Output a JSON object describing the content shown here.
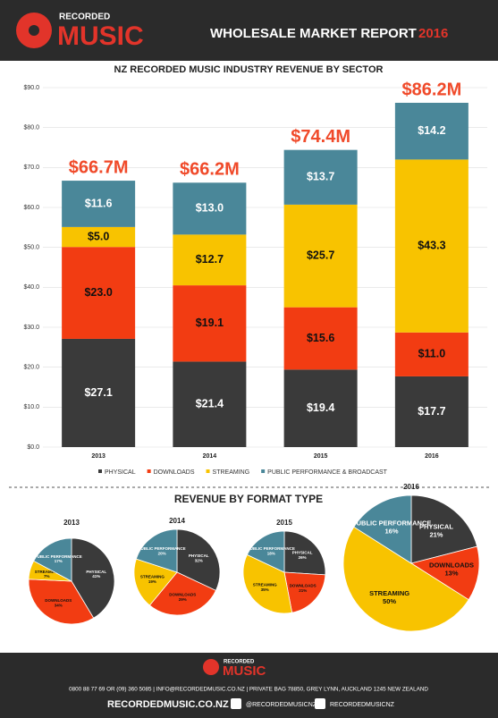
{
  "header": {
    "logo_top": "RECORDED",
    "logo_main": "MUSIC",
    "title": "WHOLESALE MARKET REPORT",
    "year": "2016"
  },
  "chart_data": [
    {
      "type": "stacked_bar",
      "title": "NZ RECORDED MUSIC INDUSTRY REVENUE BY SECTOR",
      "categories": [
        "2013",
        "2014",
        "2015",
        "2016"
      ],
      "series": [
        {
          "name": "PHYSICAL",
          "color": "#3a3a3a",
          "values": [
            27.1,
            21.4,
            19.4,
            17.7
          ],
          "value_labels": [
            "$27.1",
            "$21.4",
            "$19.4",
            "$17.7"
          ]
        },
        {
          "name": "DOWNLOADS",
          "color": "#f23c12",
          "values": [
            23.0,
            19.1,
            15.6,
            11.0
          ],
          "value_labels": [
            "$23.0",
            "$19.1",
            "$15.6",
            "$11.0"
          ]
        },
        {
          "name": "STREAMING",
          "color": "#f8c300",
          "values": [
            5.0,
            12.7,
            25.7,
            43.3
          ],
          "value_labels": [
            "$5.0",
            "$12.7",
            "$25.7",
            "$43.3"
          ]
        },
        {
          "name": "PUBLIC PERFORMANCE & BROADCAST",
          "color": "#4a8799",
          "values": [
            11.6,
            13.0,
            13.7,
            14.2
          ],
          "value_labels": [
            "$11.6",
            "$13.0",
            "$13.7",
            "$14.2"
          ]
        }
      ],
      "totals": {
        "values": [
          66.7,
          66.2,
          74.4,
          86.2
        ],
        "value_labels": [
          "$66.7M",
          "$66.2M",
          "$74.4M",
          "$86.2M"
        ]
      },
      "ylim": [
        0,
        90
      ],
      "yticks": [
        {
          "value": 0,
          "label": "$0.0"
        },
        {
          "value": 10,
          "label": "$10.0"
        },
        {
          "value": 20,
          "label": "$20.0"
        },
        {
          "value": 30,
          "label": "$30.0"
        },
        {
          "value": 40,
          "label": "$40.0"
        },
        {
          "value": 50,
          "label": "$50.0"
        },
        {
          "value": 60,
          "label": "$60.0"
        },
        {
          "value": 70,
          "label": "$70.0"
        },
        {
          "value": 80,
          "label": "$80.0"
        },
        {
          "value": 90,
          "label": "$90.0"
        }
      ],
      "legend": "bottom"
    },
    {
      "type": "pie",
      "title": "2013",
      "categories": [
        "PHYSICAL",
        "DOWNLOADS",
        "STREAMING",
        "PUBLIC PERFORMANCE"
      ],
      "colors": [
        "#3a3a3a",
        "#f23c12",
        "#f8c300",
        "#4a8799"
      ],
      "values": [
        41,
        34,
        7,
        17
      ],
      "value_labels": [
        "41%",
        "34%",
        "7%",
        "17%"
      ]
    },
    {
      "type": "pie",
      "title": "2014",
      "categories": [
        "PHYSICAL",
        "DOWNLOADS",
        "STREAMING",
        "PUBLIC PERFORMANCE"
      ],
      "colors": [
        "#3a3a3a",
        "#f23c12",
        "#f8c300",
        "#4a8799"
      ],
      "values": [
        32,
        29,
        19,
        20
      ],
      "value_labels": [
        "32%",
        "29%",
        "19%",
        "20%"
      ]
    },
    {
      "type": "pie",
      "title": "2015",
      "categories": [
        "PHYSICAL",
        "DOWNLOADS",
        "STREAMING",
        "PUBLIC PERFORMANCE"
      ],
      "colors": [
        "#3a3a3a",
        "#f23c12",
        "#f8c300",
        "#4a8799"
      ],
      "values": [
        26,
        21,
        35,
        18
      ],
      "value_labels": [
        "26%",
        "21%",
        "35%",
        "18%"
      ]
    },
    {
      "type": "pie",
      "title": "2016",
      "categories": [
        "PHYSICAL",
        "DOWNLOADS",
        "STREAMING",
        "PUBLIC PERFORMANCE"
      ],
      "colors": [
        "#3a3a3a",
        "#f23c12",
        "#f8c300",
        "#4a8799"
      ],
      "values": [
        21,
        13,
        50,
        16
      ],
      "value_labels": [
        "21%",
        "13%",
        "50%",
        "16%"
      ]
    }
  ],
  "section_title": "REVENUE BY FORMAT TYPE",
  "footer": {
    "logo_top": "RECORDED",
    "logo_main": "MUSIC",
    "contact": "0800 88 77 69 OR (09) 360 5085 | INFO@RECORDEDMUSIC.CO.NZ | PRIVATE BAG 78850, GREY LYNN, AUCKLAND 1245 NEW ZEALAND",
    "website": "RECORDEDMUSIC.CO.NZ",
    "twitter": "@RECORDEDMUSICNZ",
    "facebook": "RECORDEDMUSICNZ"
  }
}
